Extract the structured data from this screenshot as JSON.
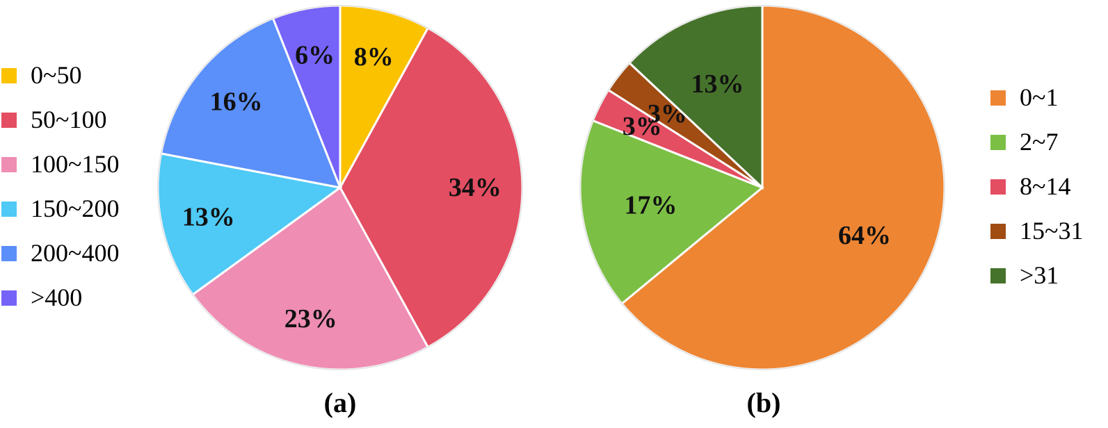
{
  "chart_data": [
    {
      "type": "pie",
      "panel_label": "(a)",
      "categories": [
        "0~50",
        "50~100",
        "100~150",
        "150~200",
        "200~400",
        ">400"
      ],
      "values": [
        8,
        34,
        23,
        13,
        16,
        6
      ],
      "labels": [
        "8%",
        "34%",
        "23%",
        "13%",
        "16%",
        "6%"
      ],
      "colors": [
        "#FBC200",
        "#E34E62",
        "#EF8DB3",
        "#4FC9F5",
        "#5B8FF9",
        "#7663F7"
      ],
      "legend_position": "left"
    },
    {
      "type": "pie",
      "panel_label": "(b)",
      "categories": [
        "0~1",
        "2~7",
        "8~14",
        "15~31",
        ">31"
      ],
      "values": [
        64,
        17,
        3,
        3,
        13
      ],
      "labels": [
        "64%",
        "17%",
        "3%",
        "3%",
        "13%"
      ],
      "colors": [
        "#ED8533",
        "#7BBF45",
        "#E34E62",
        "#A14C13",
        "#46732B"
      ],
      "legend_position": "right"
    }
  ]
}
